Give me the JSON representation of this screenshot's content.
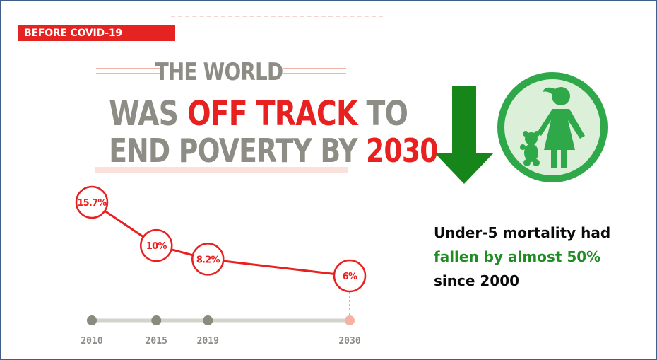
{
  "badge": "BEFORE COVID-19",
  "headline": {
    "line1": "THE WORLD",
    "line2_pre": "WAS ",
    "line2_red": "OFF TRACK",
    "line2_post": " TO",
    "line3_pre": "END POVERTY BY ",
    "line3_red": "2030"
  },
  "chart_data": {
    "type": "line",
    "x": [
      "2010",
      "2015",
      "2019",
      "2030"
    ],
    "values": [
      15.7,
      10,
      8.2,
      6
    ],
    "labels": [
      "15.7%",
      "10%",
      "8.2%",
      "6%"
    ],
    "ylabel": "",
    "xlabel": ""
  },
  "stat": {
    "line1": "Under-5 mortality had",
    "line2": "fallen by almost 50%",
    "line3": "since 2000"
  },
  "colors": {
    "red": "#e8201f",
    "gray": "#8d8d86",
    "green": "#1f8d22",
    "icon_green": "#30a84a"
  },
  "icons": [
    "down-arrow-icon",
    "child-with-teddy-bear-icon"
  ]
}
